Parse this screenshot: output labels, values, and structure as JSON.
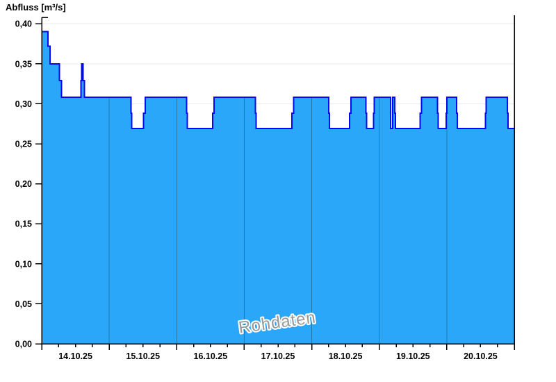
{
  "chart_data": {
    "type": "area",
    "title": "Abfluss [m³/s]",
    "watermark": "Rohdaten",
    "x_axis": {
      "kind": "time",
      "day_labels": [
        "14.10.25",
        "15.10.25",
        "16.10.25",
        "17.10.25",
        "18.10.25",
        "19.10.25",
        "20.10.25"
      ],
      "hours_total": 168,
      "major_tick_hours": 24,
      "minor_tick_hours": 6
    },
    "y_axis": {
      "label": "Abfluss [m³/s]",
      "min": 0,
      "max": 0.408,
      "ticks": [
        {
          "v": 0.4,
          "label": "0,40"
        },
        {
          "v": 0.35,
          "label": "0,35"
        },
        {
          "v": 0.3,
          "label": "0,30"
        },
        {
          "v": 0.25,
          "label": "0,25"
        },
        {
          "v": 0.2,
          "label": "0,20"
        },
        {
          "v": 0.15,
          "label": "0,15"
        },
        {
          "v": 0.1,
          "label": "0,10"
        },
        {
          "v": 0.05,
          "label": "0,05"
        },
        {
          "v": 0.0,
          "label": "0,00"
        }
      ]
    },
    "series": [
      {
        "name": "Rohdaten",
        "unit": "m³/s",
        "step_points": [
          [
            0,
            0.39
          ],
          [
            2.25,
            0.372
          ],
          [
            3,
            0.35
          ],
          [
            6.25,
            0.329
          ],
          [
            7,
            0.308
          ],
          [
            14,
            0.329
          ],
          [
            14.25,
            0.35
          ],
          [
            14.75,
            0.329
          ],
          [
            15.25,
            0.308
          ],
          [
            31.75,
            0.288
          ],
          [
            32,
            0.269
          ],
          [
            36.25,
            0.288
          ],
          [
            36.75,
            0.308
          ],
          [
            51.5,
            0.288
          ],
          [
            51.75,
            0.269
          ],
          [
            60.75,
            0.288
          ],
          [
            61.25,
            0.308
          ],
          [
            76,
            0.288
          ],
          [
            76.25,
            0.269
          ],
          [
            89,
            0.288
          ],
          [
            89.5,
            0.308
          ],
          [
            102,
            0.288
          ],
          [
            102.25,
            0.269
          ],
          [
            109.5,
            0.288
          ],
          [
            110,
            0.308
          ],
          [
            115.25,
            0.288
          ],
          [
            115.5,
            0.269
          ],
          [
            118,
            0.288
          ],
          [
            118.25,
            0.308
          ],
          [
            124,
            0.269
          ],
          [
            124.75,
            0.308
          ],
          [
            125.5,
            0.288
          ],
          [
            125.75,
            0.269
          ],
          [
            134.5,
            0.288
          ],
          [
            135,
            0.308
          ],
          [
            140.75,
            0.288
          ],
          [
            141,
            0.269
          ],
          [
            143.75,
            0.288
          ],
          [
            144,
            0.308
          ],
          [
            147.5,
            0.288
          ],
          [
            147.75,
            0.269
          ],
          [
            157.75,
            0.288
          ],
          [
            158,
            0.308
          ],
          [
            165.5,
            0.288
          ],
          [
            165.75,
            0.269
          ],
          [
            168,
            0.269
          ]
        ]
      }
    ],
    "colors": {
      "fill": "#2aa7f8",
      "line": "#0008f0",
      "day_gridline": "#2178ad",
      "h_gridline": "#e9e9e9",
      "axis": "#000000",
      "tick_label": "#000000",
      "watermark_fill": "#9a9a9a",
      "watermark_outline": "#ffffff"
    },
    "layout_hints": {
      "grid": true,
      "legend": "none",
      "ylim": [
        0,
        0.408
      ],
      "vertical_gridlines_clipped_to_fill": true
    }
  }
}
